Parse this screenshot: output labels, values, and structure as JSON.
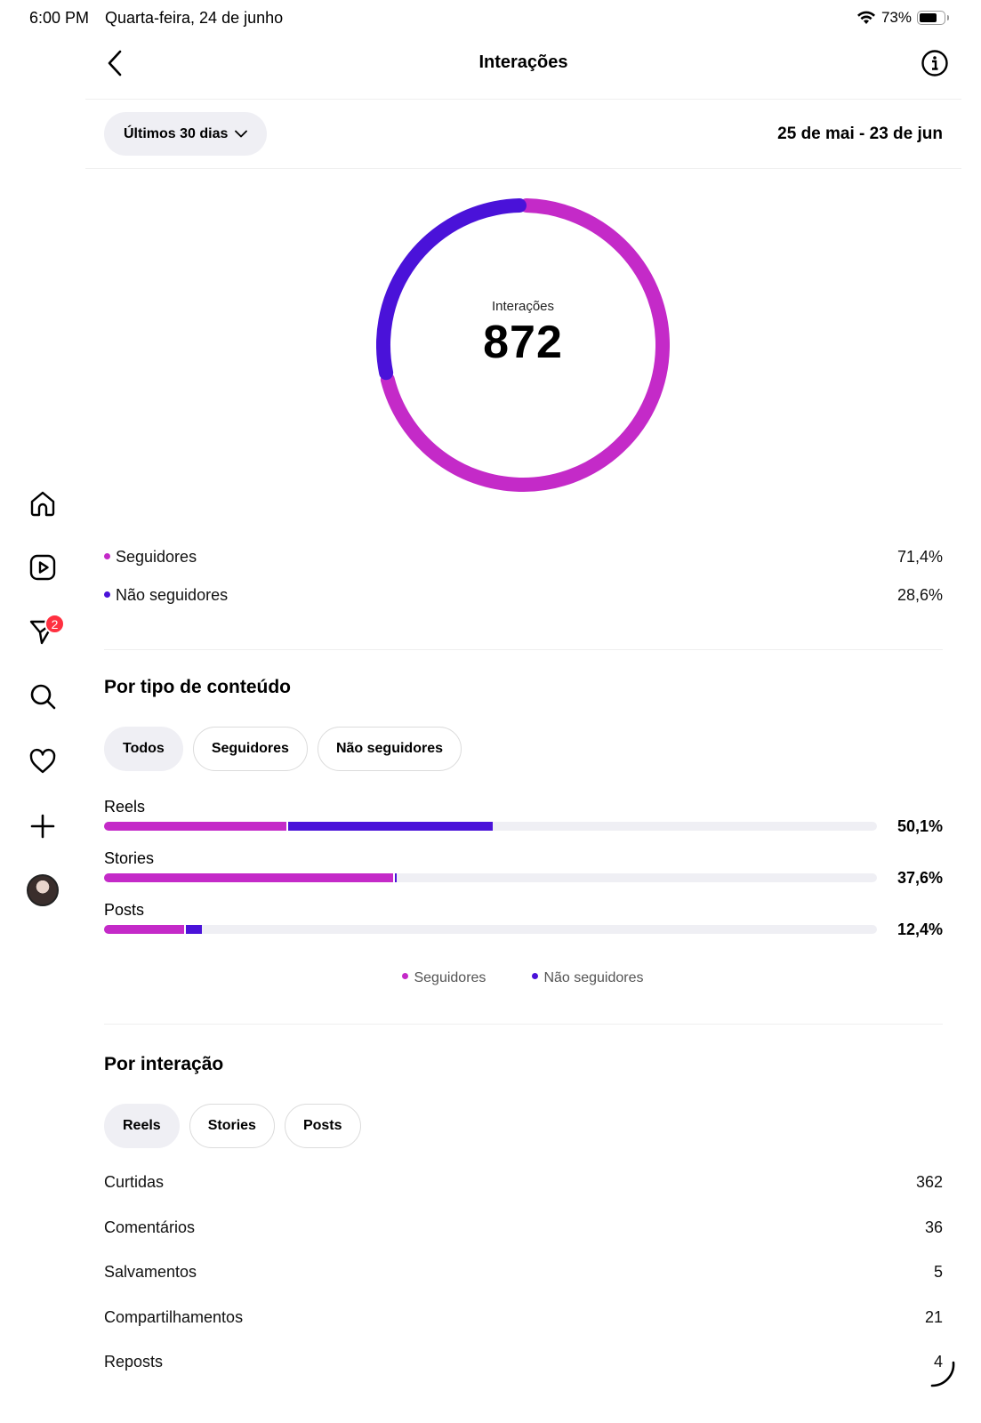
{
  "status_bar": {
    "time": "6:00 PM",
    "date": "Quarta-feira, 24 de junho",
    "battery": "73%"
  },
  "sidebar": {
    "items": [
      "home-icon",
      "reels-icon",
      "messages-icon",
      "search-icon",
      "heart-icon",
      "plus-icon",
      "avatar"
    ],
    "messages_badge": "2"
  },
  "header": {
    "title": "Interações"
  },
  "filter": {
    "range_label": "Últimos 30 dias",
    "date_range": "25 de mai - 23 de jun"
  },
  "colors": {
    "seguidores": "#c42ac8",
    "nao_seguidores": "#4a12d9"
  },
  "donut": {
    "label": "Interações",
    "value": "872",
    "seguidores_pct": 71.4,
    "nao_seguidores_pct": 28.6
  },
  "audience": [
    {
      "label": "Seguidores",
      "value": "71,4%"
    },
    {
      "label": "Não seguidores",
      "value": "28,6%"
    }
  ],
  "by_content": {
    "title": "Por tipo de conteúdo",
    "tabs": [
      "Todos",
      "Seguidores",
      "Não seguidores"
    ],
    "active_tab": 0,
    "legend": [
      "Seguidores",
      "Não seguidores"
    ]
  },
  "chart_data": {
    "type": "bar",
    "orientation": "horizontal",
    "stacked": true,
    "categories": [
      "Reels",
      "Stories",
      "Posts"
    ],
    "totals_label": [
      "50,1%",
      "37,6%",
      "12,4%"
    ],
    "series": [
      {
        "name": "Seguidores",
        "values": [
          23.6,
          37.4,
          10.4
        ]
      },
      {
        "name": "Não seguidores",
        "values": [
          26.5,
          0.2,
          2.0
        ]
      }
    ],
    "xlim": [
      0,
      100
    ]
  },
  "by_interaction": {
    "title": "Por interação",
    "tabs": [
      "Reels",
      "Stories",
      "Posts"
    ],
    "active_tab": 0,
    "rows": [
      {
        "label": "Curtidas",
        "value": "362"
      },
      {
        "label": "Comentários",
        "value": "36"
      },
      {
        "label": "Salvamentos",
        "value": "5"
      },
      {
        "label": "Compartilhamentos",
        "value": "21"
      },
      {
        "label": "Reposts",
        "value": "4"
      }
    ]
  }
}
